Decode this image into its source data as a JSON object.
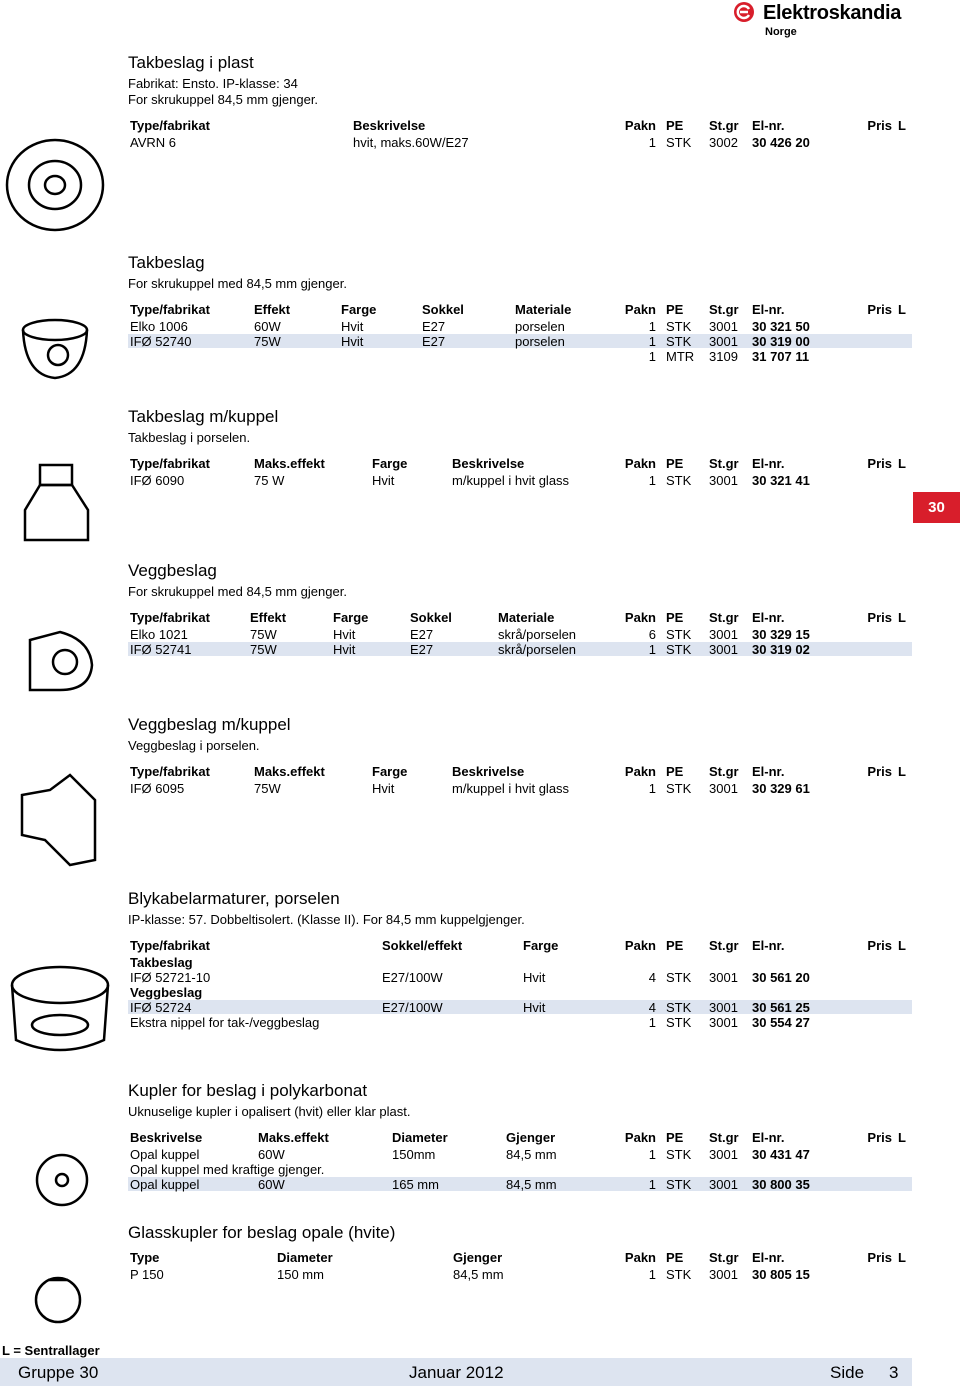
{
  "header": {
    "brand": "Elektroskandia",
    "region": "Norge"
  },
  "side_tab": "30",
  "sections": [
    {
      "title": "Takbeslag i plast",
      "lines": [
        "Fabrikat: Ensto. IP-klasse: 34",
        "For skrukuppel 84,5 mm gjenger."
      ],
      "columns": [
        "Type/fabrikat",
        "Beskrivelse",
        "Pakn",
        "PE",
        "St.gr",
        "El-nr.",
        "Pris",
        "L"
      ],
      "rows": [
        {
          "cells": [
            "AVRN 6",
            "hvit, maks.60W/E27",
            "1",
            "STK",
            "3002",
            "30 426 20"
          ]
        }
      ]
    },
    {
      "title": "Takbeslag",
      "lines": [
        "For skrukuppel med 84,5 mm gjenger."
      ],
      "columns": [
        "Type/fabrikat",
        "Effekt",
        "Farge",
        "Sokkel",
        "Materiale",
        "Pakn",
        "PE",
        "St.gr",
        "El-nr.",
        "Pris",
        "L"
      ],
      "rows": [
        {
          "cells": [
            "Elko 1006",
            "60W",
            "Hvit",
            "E27",
            "porselen",
            "1",
            "STK",
            "3001",
            "30 321 50"
          ]
        },
        {
          "cells": [
            "IFØ 52740",
            "75W",
            "Hvit",
            "E27",
            "porselen",
            "1",
            "STK",
            "3001",
            "30 319 00"
          ],
          "shaded": true
        },
        {
          "cells": [
            null,
            null,
            null,
            null,
            null,
            "1",
            "MTR",
            "3109",
            "31 707 11"
          ]
        }
      ]
    },
    {
      "title": "Takbeslag m/kuppel",
      "lines": [
        "Takbeslag i porselen."
      ],
      "columns": [
        "Type/fabrikat",
        "Maks.effekt",
        "Farge",
        "Beskrivelse",
        "Pakn",
        "PE",
        "St.gr",
        "El-nr.",
        "Pris",
        "L"
      ],
      "rows": [
        {
          "cells": [
            "IFØ 6090",
            "75 W",
            "Hvit",
            "m/kuppel i hvit glass",
            "1",
            "STK",
            "3001",
            "30 321 41"
          ]
        }
      ]
    },
    {
      "title": "Veggbeslag",
      "lines": [
        "For skrukuppel med 84,5 mm gjenger."
      ],
      "columns": [
        "Type/fabrikat",
        "Effekt",
        "Farge",
        "Sokkel",
        "Materiale",
        "Pakn",
        "PE",
        "St.gr",
        "El-nr.",
        "Pris",
        "L"
      ],
      "rows": [
        {
          "cells": [
            "Elko 1021",
            "75W",
            "Hvit",
            "E27",
            "skrå/porselen",
            "6",
            "STK",
            "3001",
            "30 329 15"
          ]
        },
        {
          "cells": [
            "IFØ 52741",
            "75W",
            "Hvit",
            "E27",
            "skrå/porselen",
            "1",
            "STK",
            "3001",
            "30 319 02"
          ],
          "shaded": true
        }
      ]
    },
    {
      "title": "Veggbeslag m/kuppel",
      "lines": [
        "Veggbeslag i porselen."
      ],
      "columns": [
        "Type/fabrikat",
        "Maks.effekt",
        "Farge",
        "Beskrivelse",
        "Pakn",
        "PE",
        "St.gr",
        "El-nr.",
        "Pris",
        "L"
      ],
      "rows": [
        {
          "cells": [
            "IFØ 6095",
            "75W",
            "Hvit",
            "m/kuppel i hvit glass",
            "1",
            "STK",
            "3001",
            "30 329 61"
          ]
        }
      ]
    },
    {
      "title": "Blykabelarmaturer, porselen",
      "lines": [
        "IP-klasse: 57. Dobbeltisolert. (Klasse II). For 84,5 mm kuppelgjenger."
      ],
      "columns": [
        "Type/fabrikat",
        "Sokkel/effekt",
        "Farge",
        "Pakn",
        "PE",
        "St.gr",
        "El-nr.",
        "Pris",
        "L"
      ],
      "rows": [
        {
          "heading": "Takbeslag"
        },
        {
          "cells": [
            "IFØ 52721-10",
            "E27/100W",
            "Hvit",
            "4",
            "STK",
            "3001",
            "30 561 20"
          ]
        },
        {
          "heading": "Veggbeslag"
        },
        {
          "cells": [
            "IFØ 52724",
            "E27/100W",
            "Hvit",
            "4",
            "STK",
            "3001",
            "30 561 25"
          ],
          "shaded": true
        },
        {
          "cells": [
            "Ekstra nippel for tak-/veggbeslag",
            null,
            null,
            "1",
            "STK",
            "3001",
            "30 554 27"
          ]
        }
      ]
    },
    {
      "title": "Kupler for beslag i polykarbonat",
      "lines": [
        "Uknuselige kupler i opalisert (hvit) eller klar plast."
      ],
      "columns": [
        "Beskrivelse",
        "Maks.effekt",
        "Diameter",
        "Gjenger",
        "Pakn",
        "PE",
        "St.gr",
        "El-nr.",
        "Pris",
        "L"
      ],
      "rows": [
        {
          "cells": [
            "Opal kuppel",
            "60W",
            "150mm",
            "84,5 mm",
            "1",
            "STK",
            "3001",
            "30 431 47"
          ]
        },
        {
          "cells": [
            "Opal kuppel med kraftige gjenger."
          ]
        },
        {
          "cells": [
            "Opal kuppel",
            "60W",
            "165 mm",
            "84,5 mm",
            "1",
            "STK",
            "3001",
            "30 800 35"
          ],
          "shaded": true
        }
      ]
    },
    {
      "title": "Glasskupler for beslag opale (hvite)",
      "lines": [],
      "columns": [
        "Type",
        "Diameter",
        "Gjenger",
        "Pakn",
        "PE",
        "St.gr",
        "El-nr.",
        "Pris",
        "L"
      ],
      "rows": [
        {
          "cells": [
            "P 150",
            "150 mm",
            "84,5 mm",
            "1",
            "STK",
            "3001",
            "30 805 15"
          ]
        }
      ]
    }
  ],
  "footer": {
    "legend": "L = Sentrallager",
    "group": "Gruppe 30",
    "date": "Januar 2012",
    "page_label": "Side",
    "page": "3"
  }
}
